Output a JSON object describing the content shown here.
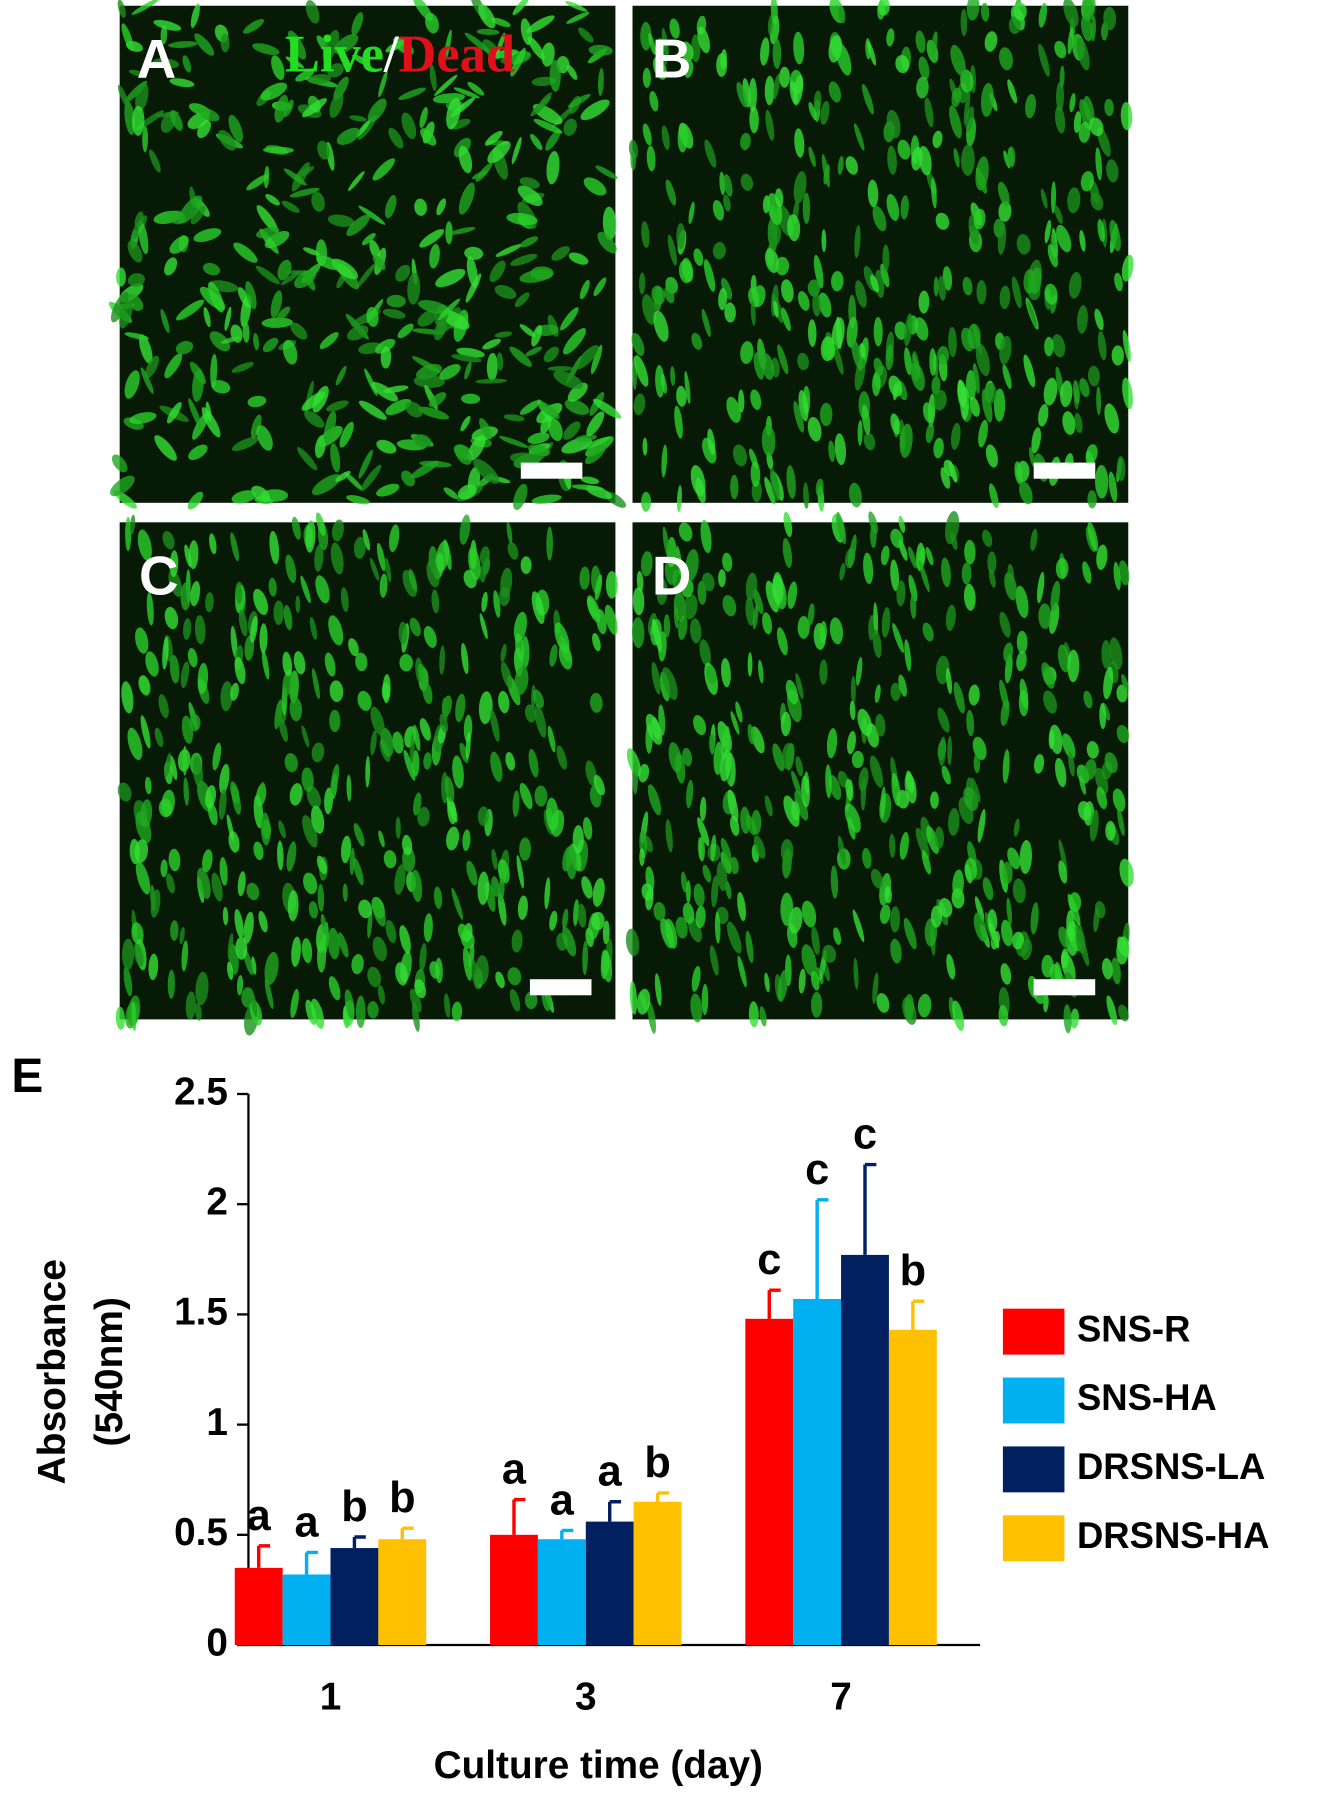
{
  "panels": [
    {
      "label": "A"
    },
    {
      "label": "B"
    },
    {
      "label": "C"
    },
    {
      "label": "D"
    }
  ],
  "stain_label": {
    "live": "Live",
    "separator": "/",
    "dead": "Dead"
  },
  "chart_panel_label": "E",
  "chart_data": {
    "type": "bar",
    "categories": [
      "1",
      "3",
      "7"
    ],
    "xlabel": "Culture time (day)",
    "ylabel": [
      "Absorbance",
      "(540nm)"
    ],
    "ylim": [
      0,
      2.5
    ],
    "yticks": [
      0,
      0.5,
      1,
      1.5,
      2,
      2.5
    ],
    "series": [
      {
        "name": "SNS-R",
        "color": "#ff0000",
        "values": [
          0.35,
          0.5,
          1.48
        ],
        "errors": [
          0.1,
          0.16,
          0.13
        ],
        "labels": [
          "a",
          "a",
          "c"
        ]
      },
      {
        "name": "SNS-HA",
        "color": "#00b0f0",
        "values": [
          0.32,
          0.48,
          1.57
        ],
        "errors": [
          0.1,
          0.04,
          0.45
        ],
        "labels": [
          "a",
          "a",
          "c"
        ]
      },
      {
        "name": "DRSNS-LA",
        "color": "#002060",
        "values": [
          0.44,
          0.56,
          1.77
        ],
        "errors": [
          0.05,
          0.09,
          0.41
        ],
        "labels": [
          "b",
          "a",
          "c"
        ]
      },
      {
        "name": "DRSNS-HA",
        "color": "#ffc000",
        "values": [
          0.48,
          0.65,
          1.43
        ],
        "errors": [
          0.05,
          0.04,
          0.13
        ],
        "labels": [
          "b",
          "b",
          "b"
        ]
      }
    ]
  }
}
